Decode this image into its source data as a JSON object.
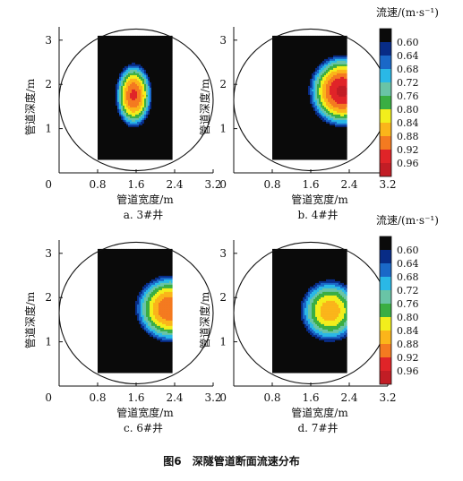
{
  "figure": {
    "number": "图6",
    "title": "深隧管道断面流速分布"
  },
  "colorbar": {
    "title": "流速/(m·s⁻¹)",
    "ticks": [
      "0.60",
      "0.64",
      "0.68",
      "0.72",
      "0.76",
      "0.80",
      "0.84",
      "0.88",
      "0.92",
      "0.96"
    ],
    "colors": [
      "#0a0a0a",
      "#082c86",
      "#1a68c8",
      "#2ab8e6",
      "#69c4a6",
      "#3aae43",
      "#f2ee1c",
      "#fbb51a",
      "#f47a20",
      "#e02428",
      "#c21d25"
    ]
  },
  "chart_data": [
    {
      "type": "heatmap",
      "subtitle": "a. 3#井",
      "xlabel": "管道宽度/m",
      "ylabel": "管道深度/m",
      "xticks": [
        "0.8",
        "1.6",
        "2.4",
        "3.2"
      ],
      "yticks": [
        "0",
        "1",
        "2",
        "3"
      ],
      "xlim": [
        0,
        3.2
      ],
      "ylim": [
        0,
        3.3
      ],
      "data_extent": {
        "x": [
          0.8,
          2.35
        ],
        "y": [
          0.3,
          3.1
        ]
      },
      "pipe_circle": {
        "center": [
          1.6,
          1.65
        ],
        "radius": 1.6
      },
      "velocity_field": {
        "peak_value": 0.93,
        "peak_at": [
          1.55,
          1.75
        ],
        "spread": [
          0.42,
          0.8
        ]
      }
    },
    {
      "type": "heatmap",
      "subtitle": "b. 4#井",
      "xlabel": "管道宽度/m",
      "ylabel": "管道深度/m",
      "xticks": [
        "0.8",
        "1.6",
        "2.4",
        "3.2"
      ],
      "yticks": [
        "0",
        "1",
        "2",
        "3"
      ],
      "xlim": [
        0,
        3.2
      ],
      "ylim": [
        0,
        3.3
      ],
      "data_extent": {
        "x": [
          0.8,
          2.35
        ],
        "y": [
          0.3,
          3.1
        ]
      },
      "pipe_circle": {
        "center": [
          1.6,
          1.65
        ],
        "radius": 1.6
      },
      "velocity_field": {
        "peak_value": 0.97,
        "peak_at": [
          2.25,
          1.85
        ],
        "spread": [
          0.72,
          0.85
        ]
      }
    },
    {
      "type": "heatmap",
      "subtitle": "c. 6#井",
      "xlabel": "管道宽度/m",
      "ylabel": "管道深度/m",
      "xticks": [
        "0.8",
        "1.6",
        "2.4",
        "3.2"
      ],
      "yticks": [
        "0",
        "1",
        "2",
        "3"
      ],
      "xlim": [
        0,
        3.2
      ],
      "ylim": [
        0,
        3.3
      ],
      "data_extent": {
        "x": [
          0.8,
          2.35
        ],
        "y": [
          0.3,
          3.1
        ]
      },
      "pipe_circle": {
        "center": [
          1.6,
          1.65
        ],
        "radius": 1.6
      },
      "velocity_field": {
        "peak_value": 0.92,
        "peak_at": [
          2.3,
          1.75
        ],
        "spread": [
          0.8,
          0.85
        ]
      }
    },
    {
      "type": "heatmap",
      "subtitle": "d. 7#井",
      "xlabel": "管道宽度/m",
      "ylabel": "管道深度/m",
      "xticks": [
        "0.8",
        "1.6",
        "2.4",
        "3.2"
      ],
      "yticks": [
        "0",
        "1",
        "2",
        "3"
      ],
      "xlim": [
        0,
        3.2
      ],
      "ylim": [
        0,
        3.3
      ],
      "data_extent": {
        "x": [
          0.8,
          2.35
        ],
        "y": [
          0.3,
          3.1
        ]
      },
      "pipe_circle": {
        "center": [
          1.6,
          1.65
        ],
        "radius": 1.6
      },
      "velocity_field": {
        "peak_value": 0.87,
        "peak_at": [
          2.0,
          1.7
        ],
        "spread": [
          0.75,
          0.85
        ]
      }
    }
  ]
}
